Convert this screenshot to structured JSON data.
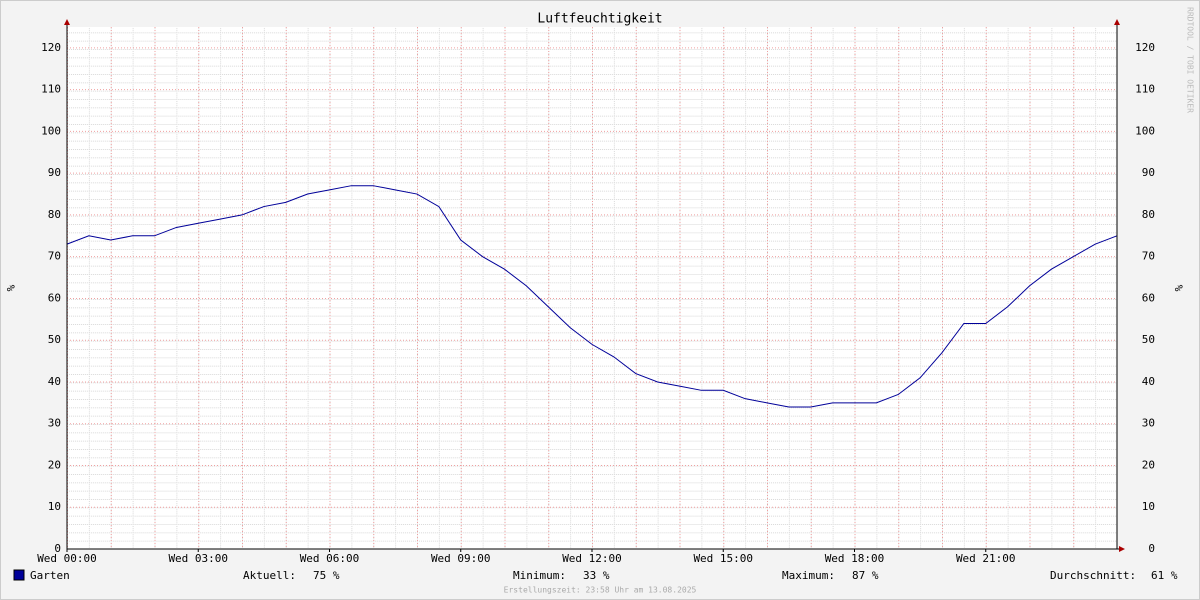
{
  "chart_data": {
    "type": "line",
    "title": "Luftfeuchtigkeit",
    "y_label": "%",
    "watermark": "RRDTOOL / TOBI OETIKER",
    "x": [
      0,
      0.5,
      1,
      1.5,
      2,
      2.5,
      3,
      3.5,
      4,
      4.5,
      5,
      5.5,
      6,
      6.5,
      7,
      7.5,
      8,
      8.5,
      9,
      9.5,
      10,
      10.5,
      11,
      11.5,
      12,
      12.5,
      13,
      13.5,
      14,
      14.5,
      15,
      15.5,
      16,
      16.5,
      17,
      17.5,
      18,
      18.5,
      19,
      19.5,
      20,
      20.5,
      21,
      21.5,
      22,
      22.5,
      23,
      23.5,
      24
    ],
    "series": [
      {
        "name": "Garten",
        "color": "#000099",
        "values": [
          73,
          75,
          74,
          75,
          75,
          77,
          78,
          79,
          80,
          82,
          83,
          85,
          86,
          87,
          87,
          86,
          85,
          82,
          74,
          70,
          67,
          63,
          58,
          53,
          49,
          46,
          42,
          40,
          39,
          38,
          38,
          36,
          35,
          34,
          34,
          35,
          35,
          35,
          37,
          41,
          47,
          54,
          54,
          58,
          63,
          67,
          70,
          73,
          75
        ]
      }
    ],
    "xlim": [
      0,
      24
    ],
    "ylim": [
      0,
      125
    ],
    "xticks": [
      {
        "value": 0,
        "label": "Wed 00:00"
      },
      {
        "value": 3,
        "label": "Wed 03:00"
      },
      {
        "value": 6,
        "label": "Wed 06:00"
      },
      {
        "value": 9,
        "label": "Wed 09:00"
      },
      {
        "value": 12,
        "label": "Wed 12:00"
      },
      {
        "value": 15,
        "label": "Wed 15:00"
      },
      {
        "value": 18,
        "label": "Wed 18:00"
      },
      {
        "value": 21,
        "label": "Wed 21:00"
      }
    ],
    "yticks": [
      0,
      10,
      20,
      30,
      40,
      50,
      60,
      70,
      80,
      90,
      100,
      110,
      120
    ],
    "grid": true,
    "stats": [
      {
        "label": "Aktuell:",
        "value": 75,
        "value_label": "75 %"
      },
      {
        "label": "Minimum:",
        "value": 33,
        "value_label": "33 %"
      },
      {
        "label": "Maximum:",
        "value": 87,
        "value_label": "87 %"
      },
      {
        "label": "Durchschnitt:",
        "value": 61,
        "value_label": "61 %"
      }
    ],
    "footer": "Erstellungszeit: 23:58 Uhr am 13.08.2025"
  }
}
